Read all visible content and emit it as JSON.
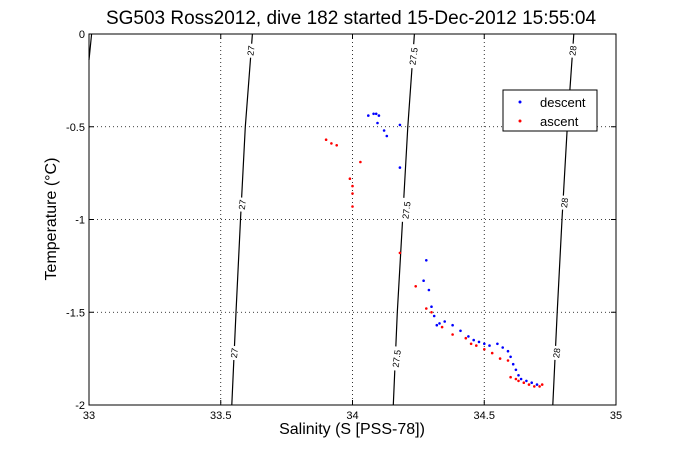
{
  "chart_data": {
    "type": "scatter",
    "title": "SG503 Ross2012, dive 182 started 15-Dec-2012 15:55:04",
    "xlabel": "Salinity (S [PSS-78])",
    "ylabel": "Temperature (°C)",
    "xlim": [
      33,
      35
    ],
    "ylim": [
      -2,
      0
    ],
    "grid": true,
    "legend_position": "top-right",
    "x_ticks": [
      "33",
      "33.5",
      "34",
      "34.5",
      "35"
    ],
    "y_ticks": [
      "0",
      "-0.5",
      "-1",
      "-1.5",
      "-2"
    ],
    "contours": [
      {
        "label": "27",
        "points": [
          [
            33.542,
            -2.0
          ],
          [
            33.558,
            -1.5
          ],
          [
            33.575,
            -1.0
          ],
          [
            33.593,
            -0.5
          ],
          [
            33.62,
            0.0
          ]
        ]
      },
      {
        "label": "27.5",
        "points": [
          [
            34.155,
            -2.0
          ],
          [
            34.17,
            -1.5
          ],
          [
            34.19,
            -1.0
          ],
          [
            34.21,
            -0.5
          ],
          [
            34.235,
            0.0
          ]
        ]
      },
      {
        "label": "28",
        "points": [
          [
            34.76,
            -2.0
          ],
          [
            34.777,
            -1.5
          ],
          [
            34.795,
            -1.0
          ],
          [
            34.815,
            -0.5
          ],
          [
            34.84,
            0.0
          ]
        ]
      },
      {
        "label": "",
        "points": [
          [
            33.0,
            -0.14
          ],
          [
            33.01,
            0.0
          ]
        ]
      }
    ],
    "contour_labels": [
      {
        "text": "27",
        "x": 33.615,
        "y": -0.09
      },
      {
        "text": "27",
        "x": 33.582,
        "y": -0.92
      },
      {
        "text": "27",
        "x": 33.552,
        "y": -1.72
      },
      {
        "text": "27.5",
        "x": 34.232,
        "y": -0.12
      },
      {
        "text": "27.5",
        "x": 34.205,
        "y": -0.95
      },
      {
        "text": "27.5",
        "x": 34.168,
        "y": -1.75
      },
      {
        "text": "28",
        "x": 34.837,
        "y": -0.09
      },
      {
        "text": "28",
        "x": 34.805,
        "y": -0.91
      },
      {
        "text": "28",
        "x": 34.775,
        "y": -1.72
      }
    ],
    "series": [
      {
        "name": "descent",
        "color": "#0000ff",
        "points": [
          [
            34.06,
            -0.44
          ],
          [
            34.08,
            -0.43
          ],
          [
            34.09,
            -0.43
          ],
          [
            34.1,
            -0.44
          ],
          [
            34.095,
            -0.48
          ],
          [
            34.12,
            -0.52
          ],
          [
            34.13,
            -0.55
          ],
          [
            34.18,
            -0.49
          ],
          [
            34.18,
            -0.72
          ],
          [
            34.28,
            -1.22
          ],
          [
            34.27,
            -1.33
          ],
          [
            34.29,
            -1.38
          ],
          [
            34.3,
            -1.47
          ],
          [
            34.31,
            -1.52
          ],
          [
            34.32,
            -1.57
          ],
          [
            34.33,
            -1.56
          ],
          [
            34.35,
            -1.55
          ],
          [
            34.38,
            -1.57
          ],
          [
            34.41,
            -1.6
          ],
          [
            34.44,
            -1.63
          ],
          [
            34.46,
            -1.65
          ],
          [
            34.48,
            -1.66
          ],
          [
            34.5,
            -1.67
          ],
          [
            34.52,
            -1.68
          ],
          [
            34.55,
            -1.67
          ],
          [
            34.57,
            -1.69
          ],
          [
            34.59,
            -1.71
          ],
          [
            34.6,
            -1.74
          ],
          [
            34.61,
            -1.78
          ],
          [
            34.62,
            -1.81
          ],
          [
            34.63,
            -1.84
          ],
          [
            34.64,
            -1.86
          ],
          [
            34.66,
            -1.87
          ],
          [
            34.68,
            -1.88
          ],
          [
            34.7,
            -1.89
          ]
        ]
      },
      {
        "name": "ascent",
        "color": "#ff0000",
        "points": [
          [
            33.9,
            -0.57
          ],
          [
            33.92,
            -0.59
          ],
          [
            33.94,
            -0.6
          ],
          [
            33.99,
            -0.78
          ],
          [
            34.0,
            -0.82
          ],
          [
            34.0,
            -0.86
          ],
          [
            34.0,
            -0.93
          ],
          [
            34.03,
            -0.69
          ],
          [
            34.18,
            -1.18
          ],
          [
            34.24,
            -1.36
          ],
          [
            34.28,
            -1.48
          ],
          [
            34.3,
            -1.5
          ],
          [
            34.34,
            -1.58
          ],
          [
            34.38,
            -1.62
          ],
          [
            34.43,
            -1.64
          ],
          [
            34.45,
            -1.67
          ],
          [
            34.47,
            -1.68
          ],
          [
            34.5,
            -1.7
          ],
          [
            34.53,
            -1.72
          ],
          [
            34.56,
            -1.75
          ],
          [
            34.59,
            -1.76
          ],
          [
            34.6,
            -1.85
          ],
          [
            34.62,
            -1.86
          ],
          [
            34.63,
            -1.87
          ],
          [
            34.65,
            -1.88
          ],
          [
            34.67,
            -1.89
          ],
          [
            34.69,
            -1.9
          ],
          [
            34.71,
            -1.9
          ],
          [
            34.72,
            -1.89
          ]
        ]
      }
    ]
  }
}
